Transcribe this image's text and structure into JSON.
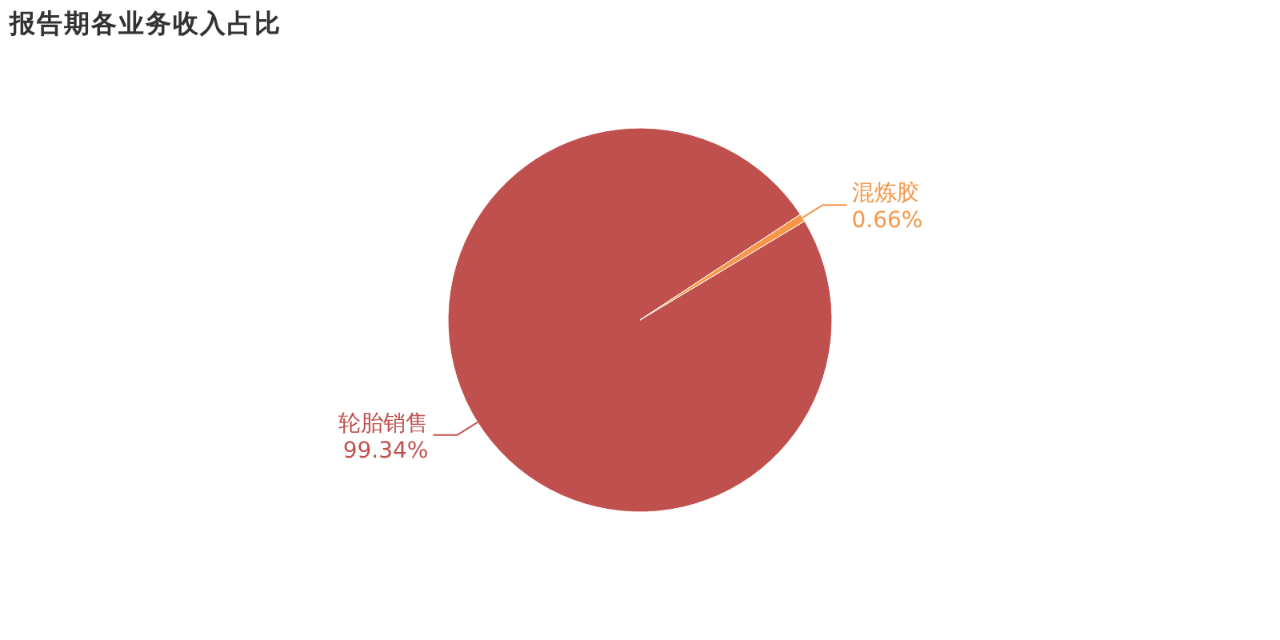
{
  "chart_data": {
    "type": "pie",
    "title": "报告期各业务收入占比",
    "categories": [
      "轮胎销售",
      "混炼胶"
    ],
    "values": [
      99.34,
      0.66
    ],
    "colors": [
      "#c0504d",
      "#f79646"
    ],
    "value_labels": [
      "99.34%",
      "0.66%"
    ]
  }
}
